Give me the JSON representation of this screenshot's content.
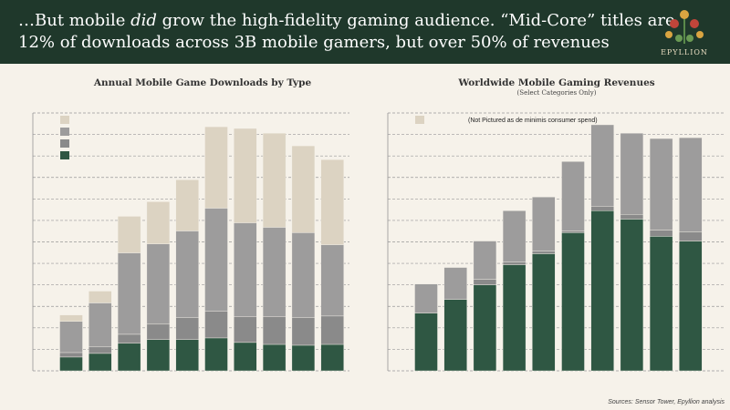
{
  "header": {
    "title": [
      [
        "…But mobile ",
        "did",
        " grow the high-fidelity gaming audience. “Mid-Core” titles are"
      ],
      [
        "12% of downloads across 3B mobile gamers, but over 50% of revenues"
      ]
    ],
    "logo": "EPYLLION"
  },
  "source": "Sources: Sensor Tower, Epyllion analysis",
  "chart_data": [
    {
      "type": "bar",
      "stacked": true,
      "title": "Annual Mobile Game Downloads by Type",
      "categories": [
        null,
        null,
        null,
        null,
        null,
        null,
        null,
        null,
        null,
        null
      ],
      "series": [
        {
          "color": "#2f5743",
          "values": [
            0.64,
            0.81,
            1.28,
            1.45,
            1.45,
            1.53,
            1.32,
            1.23,
            1.19,
            1.23
          ]
        },
        {
          "color": "#8a8a8a",
          "values": [
            0.21,
            0.3,
            0.42,
            0.72,
            1.02,
            1.24,
            1.19,
            1.28,
            1.28,
            1.32
          ]
        },
        {
          "color": "#9d9c9c",
          "values": [
            1.45,
            2.05,
            3.79,
            3.74,
            4.04,
            4.8,
            4.38,
            4.17,
            3.96,
            3.32
          ]
        },
        {
          "color": "#dcd3c2",
          "values": [
            0.3,
            0.55,
            1.7,
            1.96,
            2.38,
            3.79,
            4.39,
            4.38,
            4.04,
            3.96
          ]
        }
      ],
      "ylim": [
        0,
        12
      ],
      "yticks": [
        0,
        1,
        2,
        3,
        4,
        5,
        6,
        7,
        8,
        9,
        10,
        11,
        12
      ],
      "grid": true
    },
    {
      "type": "bar",
      "stacked": true,
      "title": "Worldwide Mobile Gaming Revenues",
      "subtitle": "(Select Categories Only)",
      "categories": [
        null,
        null,
        null,
        null,
        null,
        null,
        null,
        null,
        null,
        null
      ],
      "series": [
        {
          "color": "#2f5743",
          "values": [
            2.68,
            3.32,
            4.0,
            4.94,
            5.45,
            6.43,
            7.45,
            7.06,
            6.26,
            6.04
          ]
        },
        {
          "color": "#8a8a8a",
          "values": [
            0,
            0,
            0.26,
            0.12,
            0.12,
            0.08,
            0.21,
            0.22,
            0.29,
            0.43
          ]
        },
        {
          "color": "#9d9c9c",
          "values": [
            1.36,
            1.49,
            1.78,
            2.39,
            2.52,
            3.23,
            3.79,
            3.78,
            4.26,
            4.38
          ]
        },
        {
          "name": "(Not Pictured as de minimis consumer spend)",
          "color": "#dcd3c2",
          "values": [
            null,
            null,
            null,
            null,
            null,
            null,
            null,
            null,
            null,
            null
          ]
        }
      ],
      "ylim": [
        0,
        12
      ],
      "yticks": [
        0,
        1,
        2,
        3,
        4,
        5,
        6,
        7,
        8,
        9,
        10,
        11,
        12
      ],
      "grid": true
    }
  ]
}
